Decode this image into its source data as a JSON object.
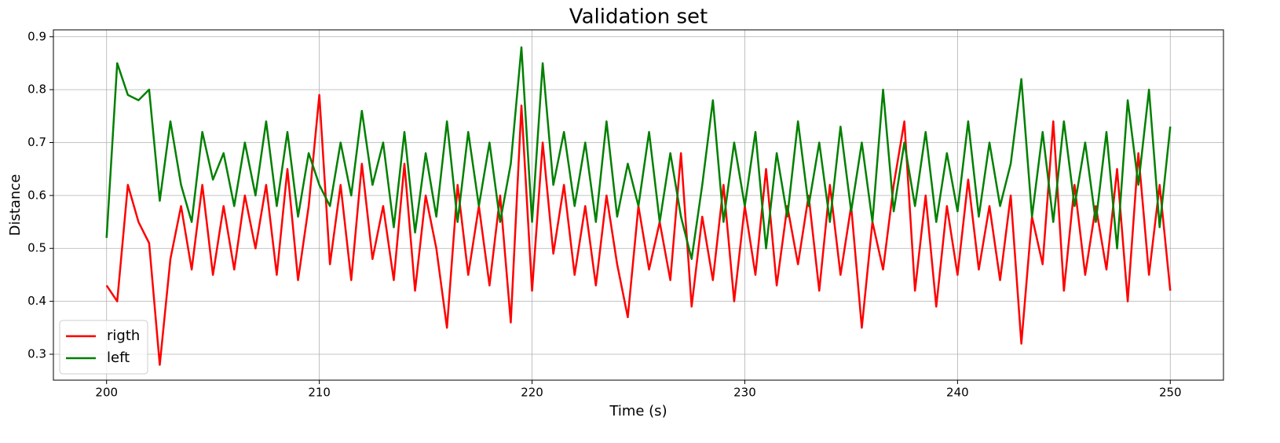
{
  "chart_data": {
    "type": "line",
    "title": "Validation set",
    "x_label": "Time (s)",
    "y_label": "Distance",
    "x": [
      200,
      200.5,
      201,
      201.5,
      202,
      202.5,
      203,
      203.5,
      204,
      204.5,
      205,
      205.5,
      206,
      206.5,
      207,
      207.5,
      208,
      208.5,
      209,
      209.5,
      210,
      210.5,
      211,
      211.5,
      212,
      212.5,
      213,
      213.5,
      214,
      214.5,
      215,
      215.5,
      216,
      216.5,
      217,
      217.5,
      218,
      218.5,
      219,
      219.5,
      220,
      220.5,
      221,
      221.5,
      222,
      222.5,
      223,
      223.5,
      224,
      224.5,
      225,
      225.5,
      226,
      226.5,
      227,
      227.5,
      228,
      228.5,
      229,
      229.5,
      230,
      230.5,
      231,
      231.5,
      232,
      232.5,
      233,
      233.5,
      234,
      234.5,
      235,
      235.5,
      236,
      236.5,
      237,
      237.5,
      238,
      238.5,
      239,
      239.5,
      240,
      240.5,
      241,
      241.5,
      242,
      242.5,
      243,
      243.5,
      244,
      244.5,
      245,
      245.5,
      246,
      246.5,
      247,
      247.5,
      248,
      248.5,
      249,
      249.5,
      250
    ],
    "series": [
      {
        "name": "rigth",
        "color": "#ff0000",
        "values": [
          0.43,
          0.4,
          0.62,
          0.55,
          0.51,
          0.28,
          0.48,
          0.58,
          0.46,
          0.62,
          0.45,
          0.58,
          0.46,
          0.6,
          0.5,
          0.62,
          0.45,
          0.65,
          0.44,
          0.58,
          0.79,
          0.47,
          0.62,
          0.44,
          0.66,
          0.48,
          0.58,
          0.44,
          0.66,
          0.42,
          0.6,
          0.5,
          0.35,
          0.62,
          0.45,
          0.58,
          0.43,
          0.6,
          0.36,
          0.77,
          0.42,
          0.7,
          0.49,
          0.62,
          0.45,
          0.58,
          0.43,
          0.6,
          0.47,
          0.37,
          0.58,
          0.46,
          0.55,
          0.44,
          0.68,
          0.39,
          0.56,
          0.44,
          0.62,
          0.4,
          0.58,
          0.45,
          0.65,
          0.43,
          0.58,
          0.47,
          0.6,
          0.42,
          0.62,
          0.45,
          0.58,
          0.35,
          0.55,
          0.46,
          0.62,
          0.74,
          0.42,
          0.6,
          0.39,
          0.58,
          0.45,
          0.63,
          0.46,
          0.58,
          0.44,
          0.6,
          0.32,
          0.56,
          0.47,
          0.74,
          0.42,
          0.62,
          0.45,
          0.58,
          0.46,
          0.65,
          0.4,
          0.68,
          0.45,
          0.62,
          0.42
        ]
      },
      {
        "name": "left",
        "color": "#008000",
        "values": [
          0.52,
          0.85,
          0.79,
          0.78,
          0.8,
          0.59,
          0.74,
          0.62,
          0.55,
          0.72,
          0.63,
          0.68,
          0.58,
          0.7,
          0.6,
          0.74,
          0.58,
          0.72,
          0.56,
          0.68,
          0.62,
          0.58,
          0.7,
          0.6,
          0.76,
          0.62,
          0.7,
          0.54,
          0.72,
          0.53,
          0.68,
          0.56,
          0.74,
          0.55,
          0.72,
          0.58,
          0.7,
          0.55,
          0.66,
          0.88,
          0.55,
          0.85,
          0.62,
          0.72,
          0.58,
          0.7,
          0.55,
          0.74,
          0.56,
          0.66,
          0.58,
          0.72,
          0.55,
          0.68,
          0.56,
          0.48,
          0.62,
          0.78,
          0.55,
          0.7,
          0.58,
          0.72,
          0.5,
          0.68,
          0.56,
          0.74,
          0.58,
          0.7,
          0.55,
          0.73,
          0.57,
          0.7,
          0.55,
          0.8,
          0.57,
          0.7,
          0.58,
          0.72,
          0.55,
          0.68,
          0.57,
          0.74,
          0.56,
          0.7,
          0.58,
          0.66,
          0.82,
          0.56,
          0.72,
          0.55,
          0.74,
          0.58,
          0.7,
          0.55,
          0.72,
          0.5,
          0.78,
          0.62,
          0.8,
          0.54,
          0.73
        ]
      }
    ],
    "xlim": [
      197.5,
      252.5
    ],
    "ylim": [
      0.251,
      0.913
    ],
    "xticks": [
      200,
      210,
      220,
      230,
      240,
      250
    ],
    "yticks": [
      0.3,
      0.4,
      0.5,
      0.6,
      0.7,
      0.8,
      0.9
    ],
    "grid": true,
    "legend": "lower left"
  }
}
